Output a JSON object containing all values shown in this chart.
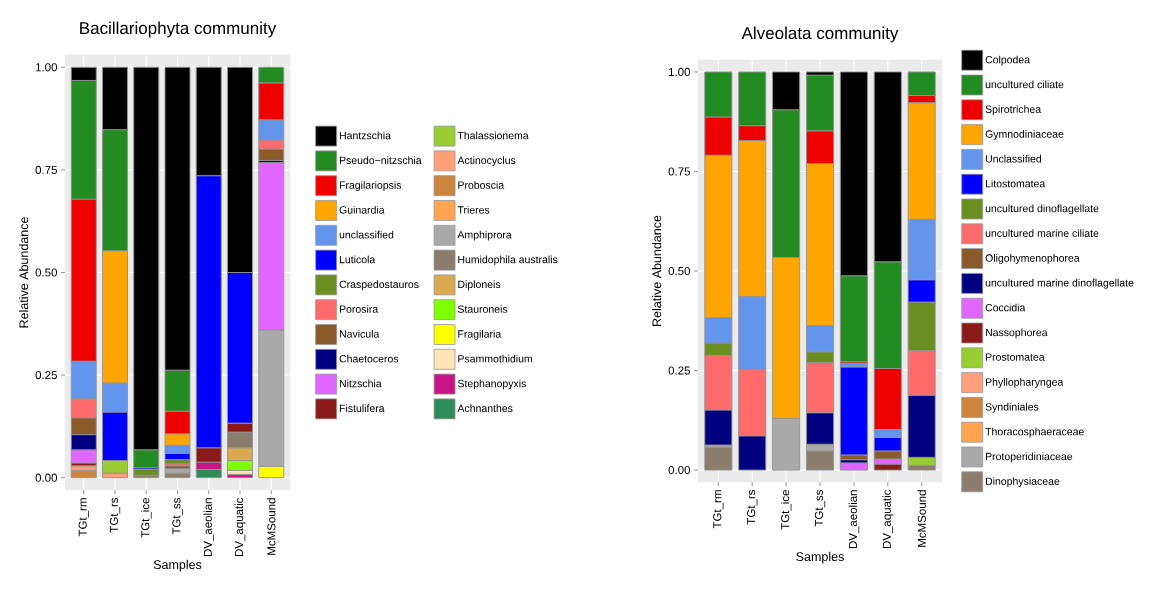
{
  "chart_data": [
    {
      "type": "bar",
      "stacked": true,
      "title": "Bacillariophyta community",
      "xlabel": "Samples",
      "ylabel": "Relative Abundance",
      "categories": [
        "TGt_rm",
        "TGt_rs",
        "TGt_ice",
        "TGt_ss",
        "DV_aeolian",
        "DV_aquatic",
        "McMSound"
      ],
      "ylim": [
        -0.03,
        1.03
      ],
      "yticks": [
        {
          "value": 0,
          "label": "0.00"
        },
        {
          "value": 0.25,
          "label": "0.25"
        },
        {
          "value": 0.5,
          "label": "0.50"
        },
        {
          "value": 0.75,
          "label": "0.75"
        },
        {
          "value": 1,
          "label": "1.00"
        }
      ],
      "grid": true,
      "legend": "right",
      "series": [
        {
          "name": "Achnanthes",
          "color": "#2e8b57",
          "values": [
            null,
            null,
            null,
            null,
            0.02,
            null,
            null
          ]
        },
        {
          "name": "Stephanopyxis",
          "color": "#c71585",
          "values": [
            null,
            null,
            null,
            null,
            0.018,
            0.008,
            null
          ]
        },
        {
          "name": "Psammothidium",
          "color": "#ffe4b5",
          "values": [
            null,
            null,
            null,
            null,
            null,
            0.01,
            null
          ]
        },
        {
          "name": "Fragilaria",
          "color": "#ffff00",
          "values": [
            null,
            null,
            null,
            null,
            null,
            null,
            0.028
          ]
        },
        {
          "name": "Stauroneis",
          "color": "#7fff00",
          "values": [
            null,
            null,
            null,
            null,
            null,
            0.024,
            null
          ]
        },
        {
          "name": "Diploneis",
          "color": "#daa84f",
          "values": [
            null,
            null,
            null,
            null,
            null,
            0.031,
            null
          ]
        },
        {
          "name": "Humidophila australis",
          "color": "#8b7d6b",
          "values": [
            null,
            null,
            0.006,
            0.011,
            null,
            0.038,
            null
          ]
        },
        {
          "name": "Amphiprora",
          "color": "#a9a9a9",
          "values": [
            null,
            null,
            null,
            0.011,
            null,
            null,
            0.332
          ]
        },
        {
          "name": "Trieres",
          "color": "#ffa54f",
          "values": [
            null,
            null,
            null,
            null,
            null,
            null,
            null
          ]
        },
        {
          "name": "Proboscia",
          "color": "#cd853f",
          "values": [
            0.018,
            null,
            null,
            null,
            null,
            null,
            null
          ]
        },
        {
          "name": "Actinocyclus",
          "color": "#ffa07a",
          "values": [
            0.011,
            0.011,
            null,
            null,
            null,
            null,
            null
          ]
        },
        {
          "name": "Thalassionema",
          "color": "#9acd32",
          "values": [
            null,
            0.031,
            null,
            null,
            null,
            null,
            null
          ]
        },
        {
          "name": "Fistulifera",
          "color": "#8b1a1a",
          "values": [
            0.007,
            null,
            null,
            null,
            0.035,
            0.022,
            null
          ]
        },
        {
          "name": "Nitzschia",
          "color": "#e066ff",
          "values": [
            0.032,
            null,
            null,
            null,
            null,
            null,
            0.408
          ]
        },
        {
          "name": "Chaetoceros",
          "color": "#000080",
          "values": [
            0.037,
            null,
            null,
            null,
            null,
            null,
            0.005
          ]
        },
        {
          "name": "Navicula",
          "color": "#8b5a2b",
          "values": [
            0.041,
            null,
            null,
            0.007,
            null,
            null,
            0.028
          ]
        },
        {
          "name": "Porosira",
          "color": "#ff6a6a",
          "values": [
            0.047,
            null,
            null,
            0.005,
            null,
            null,
            0.022
          ]
        },
        {
          "name": "Craspedostauros",
          "color": "#6b8e23",
          "values": [
            null,
            null,
            0.014,
            0.01,
            null,
            null,
            null
          ]
        },
        {
          "name": "Luticola",
          "color": "#0000ff",
          "values": [
            null,
            0.118,
            0.004,
            0.015,
            0.663,
            0.367,
            null
          ]
        },
        {
          "name": "unclassified",
          "color": "#6495ed",
          "values": [
            0.091,
            0.071,
            null,
            0.02,
            null,
            null,
            0.049
          ]
        },
        {
          "name": "Guinardia",
          "color": "#ffa500",
          "values": [
            null,
            0.322,
            null,
            0.028,
            null,
            null,
            null
          ]
        },
        {
          "name": "Fragilariopsis",
          "color": "#ee0000",
          "values": [
            0.395,
            null,
            null,
            0.055,
            null,
            null,
            0.09
          ]
        },
        {
          "name": "Pseudo−nitzschia",
          "color": "#228b22",
          "values": [
            0.289,
            0.295,
            0.044,
            0.1,
            null,
            null,
            0.038
          ]
        },
        {
          "name": "Hantzschia",
          "color": "#000000",
          "values": [
            0.032,
            0.152,
            0.932,
            0.738,
            0.264,
            0.5,
            null
          ]
        }
      ]
    },
    {
      "type": "bar",
      "stacked": true,
      "title": "Alveolata community",
      "xlabel": "Samples",
      "ylabel": "Relative Abundance",
      "categories": [
        "TGt_rm",
        "TGt_rs",
        "TGt_ice",
        "TGt_ss",
        "DV_aeolian",
        "DV_aquatic",
        "McMSound"
      ],
      "ylim": [
        -0.03,
        1.03
      ],
      "yticks": [
        {
          "value": 0,
          "label": "0.00"
        },
        {
          "value": 0.25,
          "label": "0.25"
        },
        {
          "value": 0.5,
          "label": "0.50"
        },
        {
          "value": 0.75,
          "label": "0.75"
        },
        {
          "value": 1,
          "label": "1.00"
        }
      ],
      "grid": true,
      "legend": "right",
      "series": [
        {
          "name": "Dinophysiaceae",
          "color": "#8b7d6b",
          "values": [
            0.057,
            null,
            null,
            0.048,
            null,
            null,
            0.012
          ]
        },
        {
          "name": "Protoperidiniaceae",
          "color": "#a9a9a9",
          "values": [
            0.006,
            null,
            0.13,
            0.017,
            null,
            null,
            null
          ]
        },
        {
          "name": "Thoracosphaeraceae",
          "color": "#ffa54f",
          "values": [
            null,
            null,
            null,
            null,
            null,
            null,
            null
          ]
        },
        {
          "name": "Syndiniales",
          "color": "#cd853f",
          "values": [
            null,
            null,
            null,
            null,
            null,
            null,
            null
          ]
        },
        {
          "name": "Phyllopharyngea",
          "color": "#ffa07a",
          "values": [
            null,
            null,
            null,
            null,
            null,
            null,
            null
          ]
        },
        {
          "name": "Prostomatea",
          "color": "#9acd32",
          "values": [
            null,
            null,
            null,
            null,
            null,
            null,
            0.02
          ]
        },
        {
          "name": "Nassophorea",
          "color": "#8b1a1a",
          "values": [
            null,
            null,
            null,
            null,
            null,
            0.015,
            null
          ]
        },
        {
          "name": "Coccidia",
          "color": "#e066ff",
          "values": [
            null,
            null,
            null,
            null,
            0.018,
            0.013,
            null
          ]
        },
        {
          "name": "uncultured marine dinoflagellate",
          "color": "#000080",
          "values": [
            0.088,
            0.086,
            null,
            0.079,
            0.008,
            null,
            0.156
          ]
        },
        {
          "name": "Oligohymenophorea",
          "color": "#8b5a2b",
          "values": [
            null,
            null,
            null,
            null,
            0.012,
            0.02,
            null
          ]
        },
        {
          "name": "uncultured marine ciliate",
          "color": "#ff6a6a",
          "values": [
            0.137,
            0.167,
            null,
            0.126,
            null,
            null,
            0.112
          ]
        },
        {
          "name": "uncultured dinoflagellate",
          "color": "#6b8e23",
          "values": [
            0.031,
            null,
            null,
            0.027,
            null,
            null,
            0.122
          ]
        },
        {
          "name": "Litostomatea",
          "color": "#0000ff",
          "values": [
            null,
            null,
            null,
            null,
            0.221,
            0.034,
            0.056
          ]
        },
        {
          "name": "Unclassified",
          "color": "#6495ed",
          "values": [
            0.064,
            0.183,
            null,
            0.066,
            0.009,
            0.02,
            0.152
          ]
        },
        {
          "name": "Gymnodiniaceae",
          "color": "#ffa500",
          "values": [
            0.408,
            0.392,
            0.404,
            0.407,
            null,
            null,
            0.293
          ]
        },
        {
          "name": "Spirotrichea",
          "color": "#ee0000",
          "values": [
            0.096,
            0.037,
            null,
            0.082,
            0.004,
            0.153,
            0.018
          ]
        },
        {
          "name": "uncultured ciliate",
          "color": "#228b22",
          "values": [
            0.113,
            0.135,
            0.371,
            0.14,
            0.216,
            0.268,
            0.059
          ]
        },
        {
          "name": "Colpodea",
          "color": "#000000",
          "values": [
            null,
            null,
            0.095,
            0.008,
            0.512,
            0.477,
            null
          ]
        }
      ]
    }
  ]
}
